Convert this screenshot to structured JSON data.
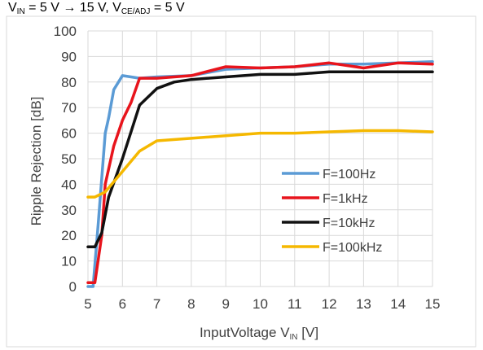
{
  "chart_data": {
    "type": "line",
    "caption": {
      "main": "V",
      "sub": "IN",
      "rest": " = 5 V → 15 V, V",
      "sub2": "CE/ADJ",
      "rest2": " = 5 V"
    },
    "xlabel": {
      "main": "InputVoltage  V",
      "sub": "IN",
      "unit": " [V]"
    },
    "ylabel": "Ripple Rejection    [dB]",
    "xlim": [
      5,
      15
    ],
    "ylim": [
      0,
      100
    ],
    "xticks": [
      5,
      6,
      7,
      8,
      9,
      10,
      11,
      12,
      13,
      14,
      15
    ],
    "yticks": [
      0,
      10,
      20,
      30,
      40,
      50,
      60,
      70,
      80,
      90,
      100
    ],
    "grid": true,
    "legend_position": "right",
    "series": [
      {
        "name": "F=100Hz",
        "color": "#5b9bd5",
        "points": [
          [
            5,
            0
          ],
          [
            5.15,
            0
          ],
          [
            5.3,
            25
          ],
          [
            5.5,
            60
          ],
          [
            5.6,
            66
          ],
          [
            5.75,
            77
          ],
          [
            6,
            82.5
          ],
          [
            6.5,
            81.5
          ],
          [
            7,
            82
          ],
          [
            8,
            82.5
          ],
          [
            9,
            85
          ],
          [
            10,
            85.5
          ],
          [
            11,
            86
          ],
          [
            12,
            87
          ],
          [
            13,
            87
          ],
          [
            14,
            87.5
          ],
          [
            15,
            88
          ]
        ]
      },
      {
        "name": "F=1kHz",
        "color": "#e8141c",
        "points": [
          [
            5,
            1.5
          ],
          [
            5.2,
            1.5
          ],
          [
            5.4,
            20
          ],
          [
            5.5,
            40
          ],
          [
            5.75,
            55
          ],
          [
            6,
            65
          ],
          [
            6.25,
            72
          ],
          [
            6.5,
            81.5
          ],
          [
            7,
            81.5
          ],
          [
            8,
            82.5
          ],
          [
            9,
            86
          ],
          [
            10,
            85.5
          ],
          [
            11,
            86
          ],
          [
            12,
            87.5
          ],
          [
            13,
            85.5
          ],
          [
            14,
            87.5
          ],
          [
            15,
            87
          ]
        ]
      },
      {
        "name": "F=10kHz",
        "color": "#111111",
        "points": [
          [
            5,
            15.5
          ],
          [
            5.2,
            15.5
          ],
          [
            5.4,
            21
          ],
          [
            5.6,
            35
          ],
          [
            6,
            50
          ],
          [
            6.5,
            71
          ],
          [
            7,
            77.5
          ],
          [
            7.5,
            80
          ],
          [
            8,
            81
          ],
          [
            9,
            82
          ],
          [
            10,
            83
          ],
          [
            11,
            83
          ],
          [
            12,
            84
          ],
          [
            13,
            84
          ],
          [
            14,
            84
          ],
          [
            15,
            84
          ]
        ]
      },
      {
        "name": "F=100kHz",
        "color": "#f5b800",
        "points": [
          [
            5,
            35
          ],
          [
            5.2,
            35
          ],
          [
            5.5,
            37
          ],
          [
            6,
            45
          ],
          [
            6.5,
            53
          ],
          [
            7,
            57
          ],
          [
            8,
            58
          ],
          [
            9,
            59
          ],
          [
            10,
            60
          ],
          [
            11,
            60
          ],
          [
            12,
            60.5
          ],
          [
            13,
            61
          ],
          [
            14,
            61
          ],
          [
            15,
            60.5
          ]
        ]
      }
    ]
  }
}
